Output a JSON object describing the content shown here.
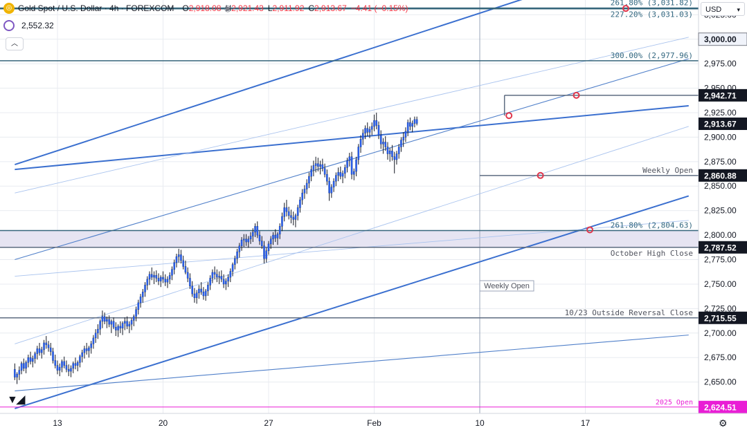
{
  "header": {
    "symbol_title": "Gold Spot / U.S. Dollar · 4h · FOREXCOM",
    "ohlc": [
      {
        "k": "O",
        "v": "2,918.08"
      },
      {
        "k": "H",
        "v": "2,921.43"
      },
      {
        "k": "L",
        "v": "2,911.92"
      },
      {
        "k": "C",
        "v": "2,913.67"
      },
      {
        "k": "",
        "v": "−4.41 (−0.15%)"
      }
    ],
    "indicator_value": "2,552.32",
    "currency": "USD",
    "logo_glyph": "◎"
  },
  "colors": {
    "candle": "#2962ff",
    "trend_heavy": "#3a6fcf",
    "trend_light": "#a9c3ee",
    "level_line": "#5d6b80",
    "teal_line": "#34657a",
    "zone_fill": "#e6e4f2",
    "marker": "#e0364b",
    "price_tag": "#131722",
    "open_2025": "#e91ed5",
    "fib_text": "#31667f",
    "grid": "#e8ebf0"
  },
  "chart_data": {
    "type": "candlestick",
    "timeframe": "4h",
    "y_axis": {
      "range": [
        2618,
        3040
      ],
      "tick_step": 25,
      "tick_labels": [
        "2,650.00",
        "2,675.00",
        "2,700.00",
        "2,725.00",
        "2,750.00",
        "2,775.00",
        "2,800.00",
        "2,825.00",
        "2,850.00",
        "2,875.00",
        "2,900.00",
        "2,925.00",
        "2,950.00",
        "2,975.00",
        "3,000.00",
        "3,025.00"
      ]
    },
    "x_axis": {
      "tick_labels": [
        "13",
        "20",
        "27",
        "Feb",
        "10",
        "17"
      ],
      "bar_at_tick": [
        19,
        66,
        113,
        160,
        207,
        254
      ],
      "bars_total": 295
    },
    "current_price": 2913.67,
    "price_tags": [
      {
        "value": 3000.0,
        "label": "3,000.00",
        "style": "light"
      },
      {
        "value": 2942.71,
        "label": "2,942.71",
        "style": "dark"
      },
      {
        "value": 2913.67,
        "label": "2,913.67",
        "style": "dark"
      },
      {
        "value": 2860.88,
        "label": "2,860.88",
        "style": "dark"
      },
      {
        "value": 2787.52,
        "label": "2,787.52",
        "style": "dark"
      },
      {
        "value": 2715.55,
        "label": "2,715.55",
        "style": "dark"
      },
      {
        "value": 2624.51,
        "label": "2,624.51",
        "style": "magenta"
      }
    ],
    "horizontal_levels": [
      {
        "value": 3031.82,
        "label": "261.80% (3,031.82)",
        "color": "teal"
      },
      {
        "value": 3031.03,
        "label": "227.20% (3,031.03)",
        "color": "teal"
      },
      {
        "value": 2977.96,
        "label": "300.00% (2,977.96)",
        "color": "teal"
      },
      {
        "value": 2942.71,
        "label": "",
        "color": "grey",
        "start_bar": 218
      },
      {
        "value": 2860.88,
        "label": "Weekly Open",
        "color": "grey",
        "start_bar": 207
      },
      {
        "value": 2804.63,
        "label": "261.80% (2,804.63)",
        "color": "teal"
      },
      {
        "value": 2787.52,
        "label": "October High Close",
        "color": "grey"
      },
      {
        "value": 2715.55,
        "label": "10/23 Outside Reversal Close",
        "color": "grey"
      },
      {
        "value": 2624.51,
        "label": "2025 Open",
        "color": "magenta"
      }
    ],
    "zone": {
      "from": 2787.52,
      "to": 2804.63
    },
    "trendlines": [
      {
        "points": [
          [
            0,
            2872
          ],
          [
            300,
            3096
          ]
        ],
        "weight": "heavy"
      },
      {
        "points": [
          [
            0,
            2867
          ],
          [
            300,
            2932
          ]
        ],
        "weight": "heavy"
      },
      {
        "points": [
          [
            0,
            2623
          ],
          [
            300,
            2840
          ]
        ],
        "weight": "heavy"
      },
      {
        "points": [
          [
            0,
            2843
          ],
          [
            300,
            3002
          ]
        ],
        "weight": "light"
      },
      {
        "points": [
          [
            0,
            2775
          ],
          [
            300,
            2980
          ]
        ],
        "weight": "medium"
      },
      {
        "points": [
          [
            0,
            2689
          ],
          [
            300,
            2911
          ]
        ],
        "weight": "light"
      },
      {
        "points": [
          [
            0,
            2758
          ],
          [
            300,
            2815
          ]
        ],
        "weight": "light"
      },
      {
        "points": [
          [
            0,
            2641
          ],
          [
            300,
            2698
          ]
        ],
        "weight": "medium"
      }
    ],
    "vertical_marker": {
      "bar": 207,
      "label": "Weekly Open"
    },
    "markers": [
      {
        "bar": 272,
        "value": 3031.4
      },
      {
        "bar": 250,
        "value": 2942.7
      },
      {
        "bar": 220,
        "value": 2922.0
      },
      {
        "bar": 234,
        "value": 2860.9
      },
      {
        "bar": 256,
        "value": 2805.4
      }
    ],
    "candles": [
      [
        2663,
        2669,
        2652,
        2655
      ],
      [
        2655,
        2660,
        2648,
        2658
      ],
      [
        2658,
        2666,
        2652,
        2662
      ],
      [
        2662,
        2671,
        2658,
        2669
      ],
      [
        2669,
        2674,
        2661,
        2664
      ],
      [
        2664,
        2672,
        2659,
        2670
      ],
      [
        2670,
        2678,
        2665,
        2675
      ],
      [
        2675,
        2681,
        2668,
        2671
      ],
      [
        2671,
        2677,
        2665,
        2674
      ],
      [
        2674,
        2681,
        2669,
        2679
      ],
      [
        2679,
        2687,
        2673,
        2684
      ],
      [
        2684,
        2690,
        2677,
        2680
      ],
      [
        2680,
        2686,
        2674,
        2683
      ],
      [
        2683,
        2693,
        2678,
        2690
      ],
      [
        2690,
        2697,
        2684,
        2688
      ],
      [
        2688,
        2692,
        2681,
        2685
      ],
      [
        2685,
        2690,
        2677,
        2681
      ],
      [
        2681,
        2685,
        2669,
        2672
      ],
      [
        2672,
        2678,
        2664,
        2667
      ],
      [
        2667,
        2672,
        2658,
        2662
      ],
      [
        2662,
        2669,
        2656,
        2665
      ],
      [
        2665,
        2673,
        2660,
        2671
      ],
      [
        2671,
        2676,
        2664,
        2667
      ],
      [
        2667,
        2672,
        2660,
        2663
      ],
      [
        2663,
        2668,
        2656,
        2661
      ],
      [
        2661,
        2667,
        2655,
        2664
      ],
      [
        2664,
        2671,
        2659,
        2669
      ],
      [
        2669,
        2675,
        2663,
        2667
      ],
      [
        2667,
        2672,
        2661,
        2670
      ],
      [
        2670,
        2678,
        2665,
        2676
      ],
      [
        2676,
        2683,
        2670,
        2680
      ],
      [
        2680,
        2687,
        2674,
        2684
      ],
      [
        2684,
        2690,
        2678,
        2682
      ],
      [
        2682,
        2687,
        2675,
        2685
      ],
      [
        2685,
        2692,
        2679,
        2689
      ],
      [
        2689,
        2698,
        2684,
        2695
      ],
      [
        2695,
        2704,
        2690,
        2700
      ],
      [
        2700,
        2709,
        2694,
        2704
      ],
      [
        2704,
        2714,
        2698,
        2712
      ],
      [
        2712,
        2723,
        2705,
        2717
      ],
      [
        2717,
        2721,
        2709,
        2712
      ],
      [
        2712,
        2717,
        2705,
        2714
      ],
      [
        2714,
        2718,
        2706,
        2709
      ],
      [
        2709,
        2714,
        2700,
        2712
      ],
      [
        2712,
        2716,
        2704,
        2706
      ],
      [
        2706,
        2711,
        2697,
        2703
      ],
      [
        2703,
        2709,
        2696,
        2707
      ],
      [
        2707,
        2712,
        2700,
        2705
      ],
      [
        2705,
        2712,
        2698,
        2710
      ],
      [
        2710,
        2716,
        2703,
        2712
      ],
      [
        2712,
        2717,
        2704,
        2707
      ],
      [
        2707,
        2712,
        2700,
        2709
      ],
      [
        2709,
        2715,
        2703,
        2713
      ],
      [
        2713,
        2719,
        2707,
        2717
      ],
      [
        2717,
        2727,
        2712,
        2724
      ],
      [
        2724,
        2734,
        2719,
        2731
      ],
      [
        2731,
        2740,
        2726,
        2737
      ],
      [
        2737,
        2745,
        2731,
        2742
      ],
      [
        2742,
        2752,
        2737,
        2749
      ],
      [
        2749,
        2758,
        2744,
        2755
      ],
      [
        2755,
        2763,
        2749,
        2760
      ],
      [
        2760,
        2767,
        2754,
        2757
      ],
      [
        2757,
        2763,
        2750,
        2759
      ],
      [
        2759,
        2764,
        2752,
        2756
      ],
      [
        2756,
        2761,
        2749,
        2753
      ],
      [
        2753,
        2759,
        2747,
        2757
      ],
      [
        2757,
        2763,
        2751,
        2755
      ],
      [
        2755,
        2760,
        2748,
        2752
      ],
      [
        2752,
        2758,
        2746,
        2755
      ],
      [
        2755,
        2762,
        2750,
        2759
      ],
      [
        2759,
        2768,
        2754,
        2765
      ],
      [
        2765,
        2775,
        2760,
        2772
      ],
      [
        2772,
        2781,
        2767,
        2778
      ],
      [
        2778,
        2786,
        2772,
        2780
      ],
      [
        2780,
        2785,
        2771,
        2774
      ],
      [
        2774,
        2779,
        2765,
        2768
      ],
      [
        2768,
        2774,
        2760,
        2762
      ],
      [
        2762,
        2767,
        2752,
        2756
      ],
      [
        2756,
        2761,
        2745,
        2748
      ],
      [
        2748,
        2753,
        2737,
        2740
      ],
      [
        2740,
        2746,
        2731,
        2736
      ],
      [
        2736,
        2744,
        2730,
        2741
      ],
      [
        2741,
        2749,
        2735,
        2745
      ],
      [
        2745,
        2752,
        2739,
        2742
      ],
      [
        2742,
        2747,
        2734,
        2738
      ],
      [
        2738,
        2745,
        2733,
        2743
      ],
      [
        2743,
        2752,
        2738,
        2749
      ],
      [
        2749,
        2759,
        2744,
        2756
      ],
      [
        2756,
        2765,
        2751,
        2762
      ],
      [
        2762,
        2768,
        2755,
        2760
      ],
      [
        2760,
        2765,
        2752,
        2757
      ],
      [
        2757,
        2763,
        2750,
        2758
      ],
      [
        2758,
        2764,
        2752,
        2755
      ],
      [
        2755,
        2760,
        2746,
        2750
      ],
      [
        2750,
        2756,
        2744,
        2753
      ],
      [
        2753,
        2760,
        2747,
        2757
      ],
      [
        2757,
        2766,
        2752,
        2763
      ],
      [
        2763,
        2772,
        2758,
        2770
      ],
      [
        2770,
        2779,
        2765,
        2776
      ],
      [
        2776,
        2786,
        2771,
        2783
      ],
      [
        2783,
        2792,
        2777,
        2789
      ],
      [
        2789,
        2798,
        2784,
        2795
      ],
      [
        2795,
        2801,
        2788,
        2796
      ],
      [
        2796,
        2801,
        2789,
        2793
      ],
      [
        2793,
        2799,
        2787,
        2796
      ],
      [
        2796,
        2803,
        2791,
        2799
      ],
      [
        2799,
        2807,
        2793,
        2803
      ],
      [
        2803,
        2812,
        2798,
        2809
      ],
      [
        2809,
        2814,
        2797,
        2800
      ],
      [
        2800,
        2804,
        2790,
        2794
      ],
      [
        2794,
        2799,
        2786,
        2789
      ],
      [
        2789,
        2794,
        2771,
        2776
      ],
      [
        2776,
        2787,
        2772,
        2784
      ],
      [
        2784,
        2794,
        2780,
        2791
      ],
      [
        2791,
        2799,
        2786,
        2796
      ],
      [
        2796,
        2803,
        2790,
        2800
      ],
      [
        2800,
        2806,
        2793,
        2797
      ],
      [
        2797,
        2803,
        2790,
        2801
      ],
      [
        2801,
        2812,
        2796,
        2809
      ],
      [
        2809,
        2823,
        2804,
        2819
      ],
      [
        2819,
        2833,
        2814,
        2828
      ],
      [
        2828,
        2836,
        2819,
        2824
      ],
      [
        2824,
        2829,
        2816,
        2820
      ],
      [
        2820,
        2826,
        2812,
        2818
      ],
      [
        2818,
        2824,
        2810,
        2816
      ],
      [
        2816,
        2822,
        2808,
        2820
      ],
      [
        2820,
        2831,
        2815,
        2828
      ],
      [
        2828,
        2839,
        2823,
        2836
      ],
      [
        2836,
        2847,
        2831,
        2843
      ],
      [
        2843,
        2851,
        2837,
        2847
      ],
      [
        2847,
        2857,
        2842,
        2853
      ],
      [
        2853,
        2864,
        2848,
        2860
      ],
      [
        2860,
        2871,
        2855,
        2867
      ],
      [
        2867,
        2876,
        2860,
        2871
      ],
      [
        2871,
        2880,
        2864,
        2873
      ],
      [
        2873,
        2879,
        2865,
        2870
      ],
      [
        2870,
        2876,
        2862,
        2872
      ],
      [
        2872,
        2878,
        2865,
        2868
      ],
      [
        2868,
        2873,
        2859,
        2862
      ],
      [
        2862,
        2867,
        2851,
        2855
      ],
      [
        2855,
        2859,
        2835,
        2843
      ],
      [
        2843,
        2852,
        2838,
        2849
      ],
      [
        2849,
        2858,
        2844,
        2855
      ],
      [
        2855,
        2864,
        2850,
        2861
      ],
      [
        2861,
        2869,
        2855,
        2864
      ],
      [
        2864,
        2870,
        2857,
        2860
      ],
      [
        2860,
        2866,
        2853,
        2863
      ],
      [
        2863,
        2872,
        2858,
        2869
      ],
      [
        2869,
        2879,
        2864,
        2876
      ],
      [
        2876,
        2884,
        2870,
        2880
      ],
      [
        2880,
        2885,
        2857,
        2862
      ],
      [
        2862,
        2868,
        2856,
        2865
      ],
      [
        2865,
        2880,
        2860,
        2877
      ],
      [
        2877,
        2893,
        2872,
        2890
      ],
      [
        2890,
        2902,
        2884,
        2898
      ],
      [
        2898,
        2908,
        2892,
        2904
      ],
      [
        2904,
        2912,
        2898,
        2909
      ],
      [
        2909,
        2915,
        2901,
        2905
      ],
      [
        2905,
        2911,
        2899,
        2908
      ],
      [
        2908,
        2915,
        2902,
        2911
      ],
      [
        2911,
        2923,
        2906,
        2917
      ],
      [
        2917,
        2925,
        2908,
        2912
      ],
      [
        2912,
        2916,
        2898,
        2902
      ],
      [
        2902,
        2907,
        2888,
        2893
      ],
      [
        2893,
        2899,
        2883,
        2895
      ],
      [
        2895,
        2901,
        2886,
        2890
      ],
      [
        2890,
        2895,
        2877,
        2883
      ],
      [
        2883,
        2889,
        2875,
        2886
      ],
      [
        2886,
        2892,
        2876,
        2880
      ],
      [
        2880,
        2885,
        2863,
        2877
      ],
      [
        2877,
        2886,
        2872,
        2883
      ],
      [
        2883,
        2893,
        2878,
        2890
      ],
      [
        2890,
        2900,
        2885,
        2897
      ],
      [
        2897,
        2905,
        2890,
        2900
      ],
      [
        2900,
        2910,
        2895,
        2906
      ],
      [
        2906,
        2918,
        2901,
        2915
      ],
      [
        2915,
        2920,
        2907,
        2911
      ],
      [
        2911,
        2917,
        2905,
        2914
      ],
      [
        2914,
        2921,
        2910,
        2918
      ],
      [
        2918,
        2921,
        2912,
        2914
      ]
    ]
  }
}
